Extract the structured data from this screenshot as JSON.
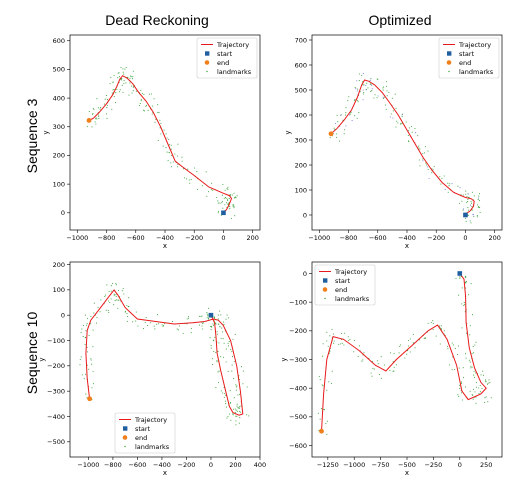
{
  "titles": {
    "col_left": "Dead Reckoning",
    "col_right": "Optimized",
    "row_top": "Sequence 3",
    "row_bottom": "Sequence 10"
  },
  "colors": {
    "trajectory": "#e8191a",
    "start": "#1f5fa0",
    "end": "#f07f1c",
    "landmarks": "#3aa43a",
    "landmarks_alt": "#7a7ae0"
  },
  "chart_data": [
    {
      "id": "seq3-dead",
      "type": "line",
      "xlabel": "x",
      "ylabel": "y",
      "xlim": [
        -1050,
        250
      ],
      "ylim": [
        -60,
        620
      ],
      "xticks": [
        -1000,
        -800,
        -600,
        -400,
        -200,
        0,
        200
      ],
      "yticks": [
        0,
        100,
        200,
        300,
        400,
        500,
        600
      ],
      "legend": {
        "position": "top-right",
        "entries": [
          "Trajectory",
          "start",
          "end",
          "landmarks"
        ]
      },
      "trajectory": [
        [
          0,
          5
        ],
        [
          20,
          10
        ],
        [
          40,
          30
        ],
        [
          55,
          50
        ],
        [
          40,
          60
        ],
        [
          0,
          68
        ],
        [
          -100,
          90
        ],
        [
          -200,
          130
        ],
        [
          -280,
          160
        ],
        [
          -330,
          180
        ],
        [
          -380,
          240
        ],
        [
          -430,
          300
        ],
        [
          -480,
          350
        ],
        [
          -530,
          390
        ],
        [
          -580,
          420
        ],
        [
          -620,
          450
        ],
        [
          -660,
          470
        ],
        [
          -690,
          478
        ],
        [
          -710,
          465
        ],
        [
          -730,
          440
        ],
        [
          -760,
          410
        ],
        [
          -800,
          380
        ],
        [
          -850,
          350
        ],
        [
          -890,
          330
        ],
        [
          -920,
          322
        ]
      ],
      "start": [
        0,
        0
      ],
      "end": [
        -920,
        322
      ]
    },
    {
      "id": "seq3-opt",
      "type": "line",
      "xlabel": "x",
      "ylabel": "y",
      "xlim": [
        -1050,
        250
      ],
      "ylim": [
        -60,
        720
      ],
      "xticks": [
        -1000,
        -800,
        -600,
        -400,
        -200,
        0,
        200
      ],
      "yticks": [
        0,
        100,
        200,
        300,
        400,
        500,
        600,
        700
      ],
      "legend": {
        "position": "top-right",
        "entries": [
          "Trajectory",
          "start",
          "end",
          "landmarks"
        ]
      },
      "trajectory": [
        [
          0,
          5
        ],
        [
          30,
          15
        ],
        [
          55,
          35
        ],
        [
          60,
          55
        ],
        [
          40,
          65
        ],
        [
          0,
          70
        ],
        [
          -80,
          90
        ],
        [
          -160,
          130
        ],
        [
          -230,
          180
        ],
        [
          -290,
          230
        ],
        [
          -350,
          290
        ],
        [
          -410,
          350
        ],
        [
          -460,
          400
        ],
        [
          -520,
          450
        ],
        [
          -570,
          490
        ],
        [
          -620,
          520
        ],
        [
          -660,
          535
        ],
        [
          -690,
          540
        ],
        [
          -710,
          520
        ],
        [
          -740,
          470
        ],
        [
          -780,
          420
        ],
        [
          -830,
          380
        ],
        [
          -880,
          345
        ],
        [
          -920,
          325
        ]
      ],
      "start": [
        0,
        0
      ],
      "end": [
        -920,
        325
      ]
    },
    {
      "id": "seq10-dead",
      "type": "line",
      "xlabel": "x",
      "ylabel": "y",
      "xlim": [
        -1150,
        400
      ],
      "ylim": [
        -560,
        210
      ],
      "xticks": [
        -1000,
        -800,
        -600,
        -400,
        -200,
        0,
        200,
        400
      ],
      "yticks": [
        -500,
        -400,
        -300,
        -200,
        -100,
        0,
        100,
        200
      ],
      "legend": {
        "position": "bottom-center",
        "entries": [
          "Trajectory",
          "start",
          "end",
          "landmarks"
        ]
      },
      "trajectory": [
        [
          0,
          0
        ],
        [
          30,
          -30
        ],
        [
          40,
          -80
        ],
        [
          50,
          -150
        ],
        [
          80,
          -220
        ],
        [
          120,
          -300
        ],
        [
          150,
          -360
        ],
        [
          180,
          -385
        ],
        [
          230,
          -395
        ],
        [
          260,
          -390
        ],
        [
          240,
          -300
        ],
        [
          210,
          -200
        ],
        [
          160,
          -100
        ],
        [
          100,
          -40
        ],
        [
          60,
          -20
        ],
        [
          20,
          -15
        ],
        [
          -50,
          -25
        ],
        [
          -150,
          -30
        ],
        [
          -300,
          -35
        ],
        [
          -450,
          -25
        ],
        [
          -600,
          -15
        ],
        [
          -700,
          30
        ],
        [
          -760,
          80
        ],
        [
          -790,
          100
        ],
        [
          -830,
          75
        ],
        [
          -900,
          30
        ],
        [
          -980,
          -20
        ],
        [
          -1010,
          -60
        ],
        [
          -1020,
          -150
        ],
        [
          -1010,
          -250
        ],
        [
          -990,
          -330
        ]
      ],
      "start": [
        0,
        0
      ],
      "end": [
        -990,
        -330
      ]
    },
    {
      "id": "seq10-opt",
      "type": "line",
      "xlabel": "x",
      "ylabel": "y",
      "xlim": [
        -1400,
        400
      ],
      "ylim": [
        -640,
        40
      ],
      "xticks": [
        -1250,
        -1000,
        -750,
        -500,
        -250,
        0,
        250
      ],
      "yticks": [
        -600,
        -500,
        -400,
        -300,
        -200,
        -100,
        0
      ],
      "legend": {
        "position": "top-left",
        "entries": [
          "Trajectory",
          "start",
          "end",
          "landmarks"
        ]
      },
      "trajectory": [
        [
          0,
          0
        ],
        [
          40,
          -20
        ],
        [
          55,
          -80
        ],
        [
          60,
          -170
        ],
        [
          90,
          -260
        ],
        [
          140,
          -330
        ],
        [
          200,
          -380
        ],
        [
          250,
          -400
        ],
        [
          200,
          -420
        ],
        [
          80,
          -440
        ],
        [
          20,
          -410
        ],
        [
          -30,
          -320
        ],
        [
          -120,
          -230
        ],
        [
          -210,
          -180
        ],
        [
          -300,
          -200
        ],
        [
          -450,
          -250
        ],
        [
          -600,
          -300
        ],
        [
          -700,
          -340
        ],
        [
          -800,
          -320
        ],
        [
          -950,
          -270
        ],
        [
          -1100,
          -230
        ],
        [
          -1200,
          -220
        ],
        [
          -1260,
          -300
        ],
        [
          -1290,
          -420
        ],
        [
          -1310,
          -550
        ]
      ],
      "start": [
        0,
        0
      ],
      "end": [
        -1310,
        -550
      ]
    }
  ]
}
